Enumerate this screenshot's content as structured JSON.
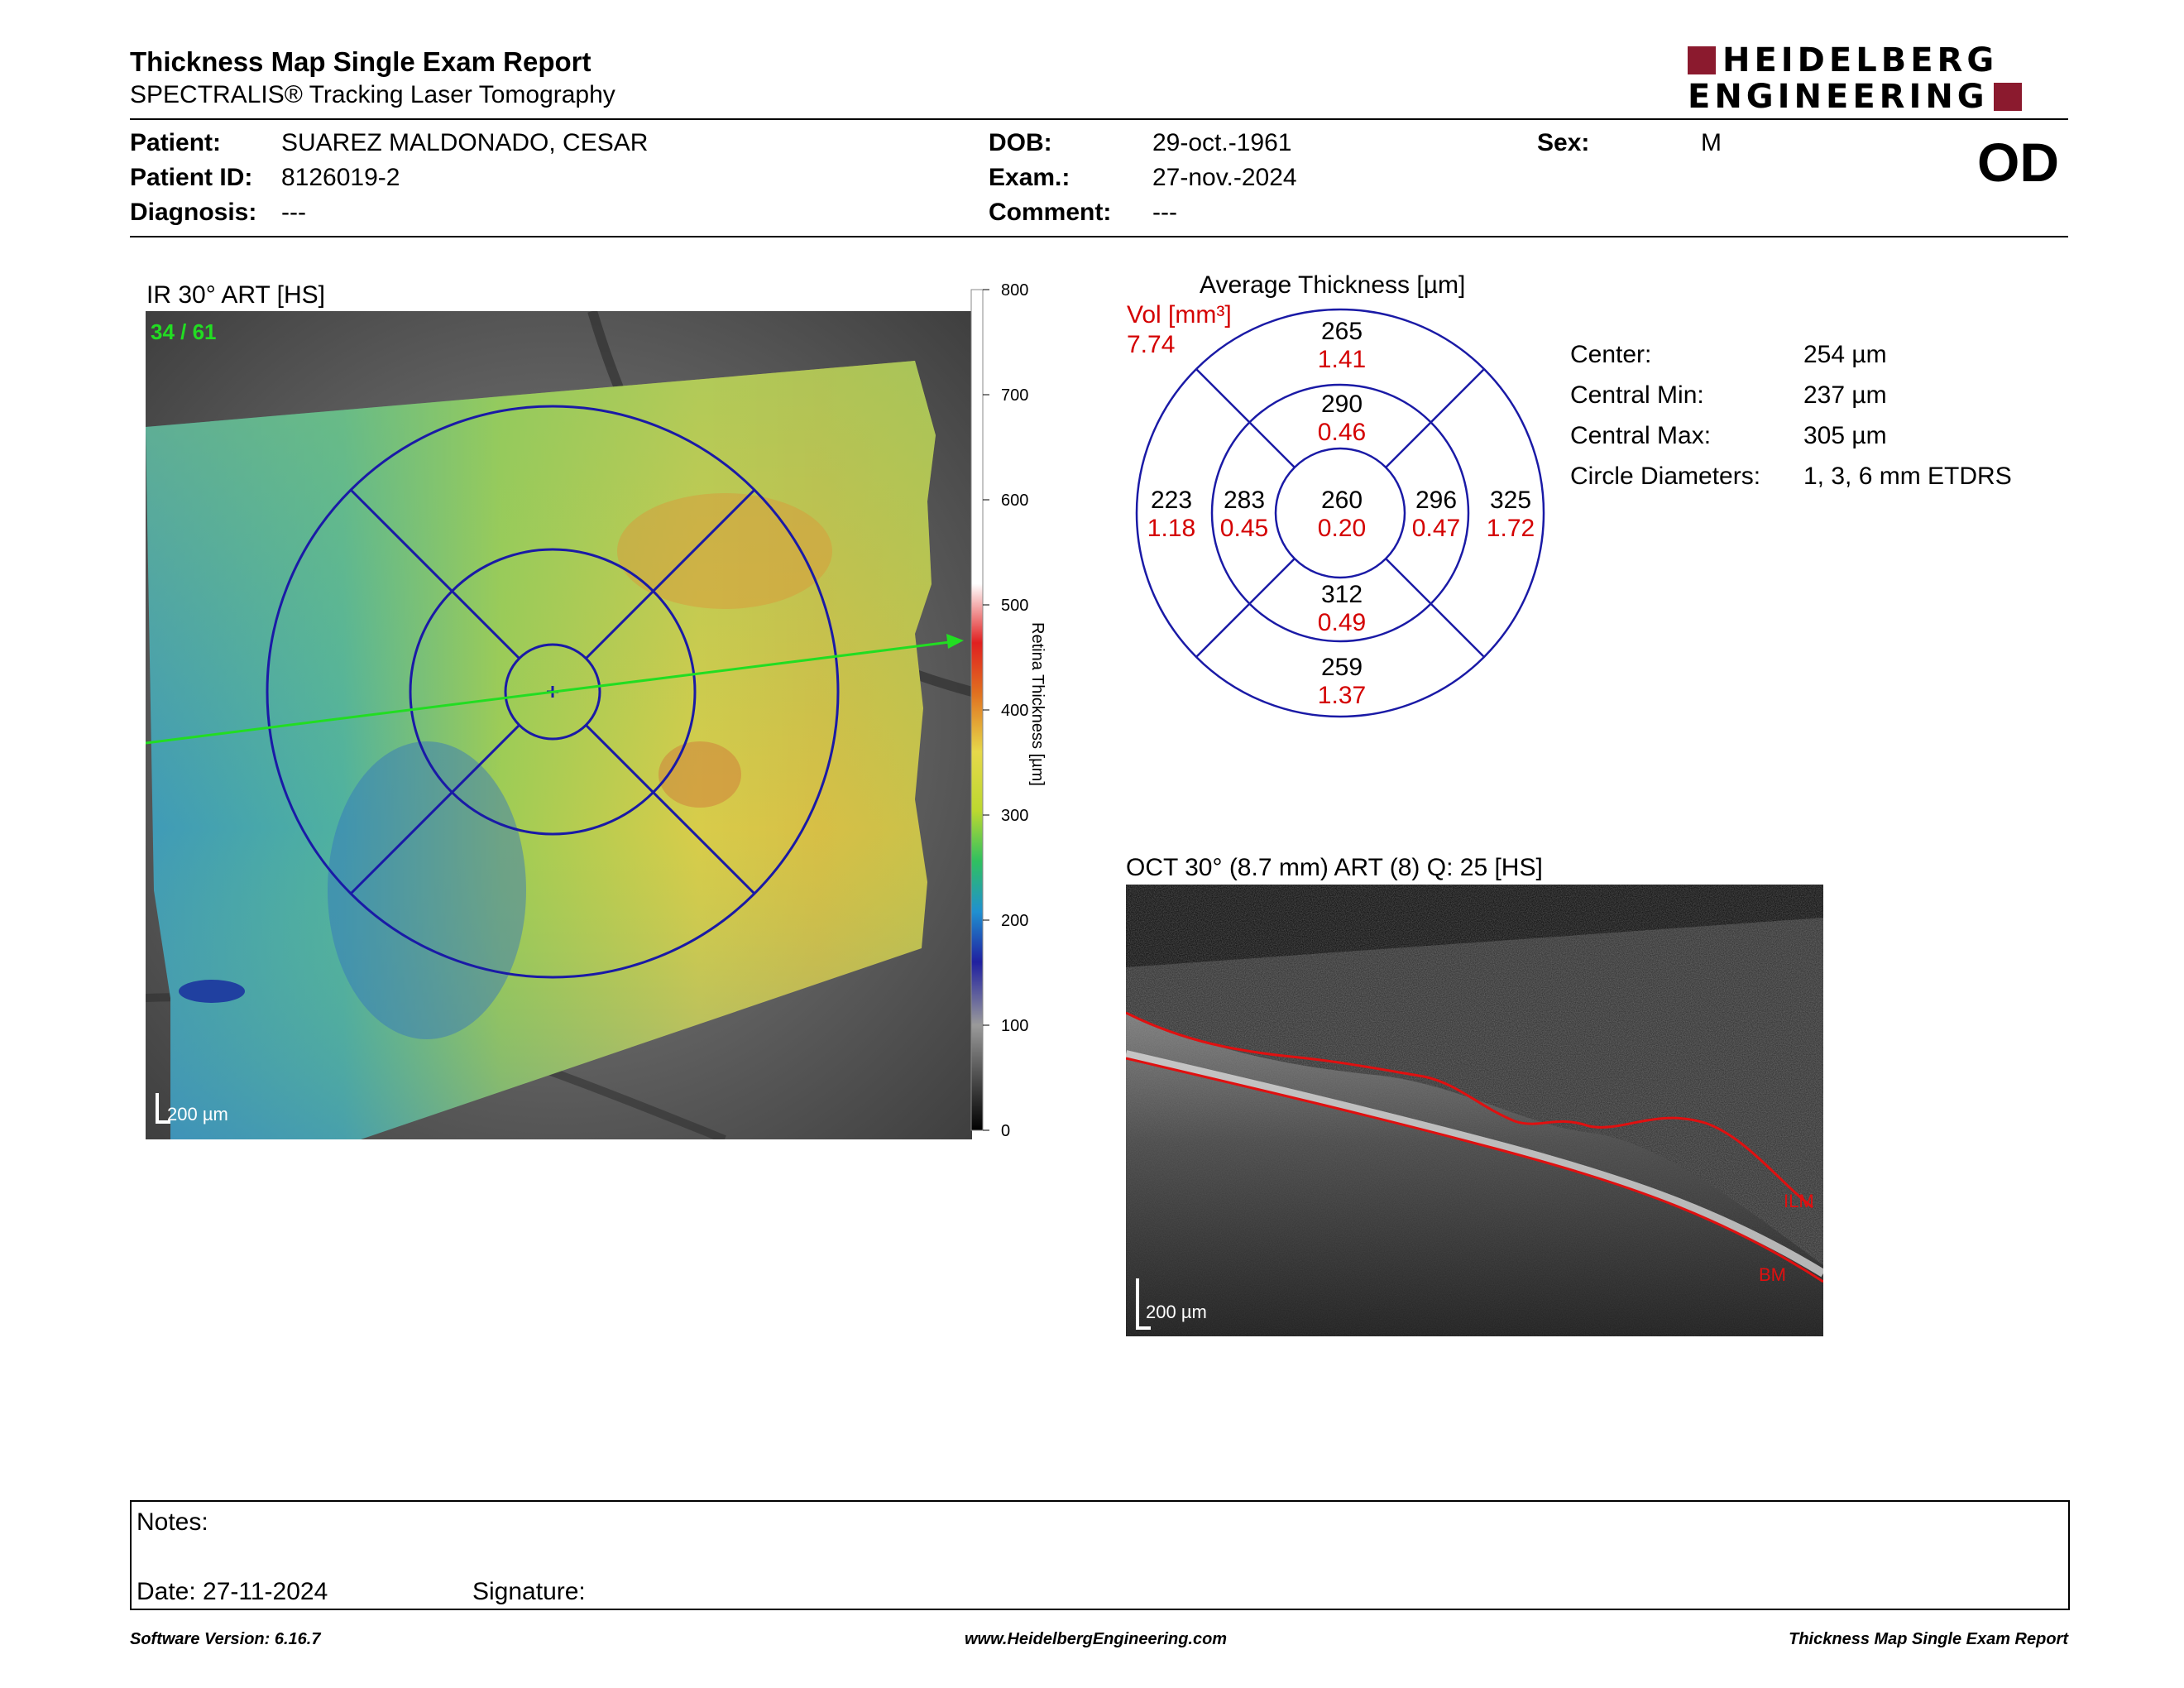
{
  "header": {
    "title": "Thickness Map Single Exam Report",
    "subtitle": "SPECTRALIS® Tracking Laser Tomography",
    "logo_line1": "HEIDELBERG",
    "logo_line2": "ENGINEERING",
    "eye": "OD"
  },
  "patient": {
    "patient_label": "Patient:",
    "patient_value": "SUAREZ MALDONADO, CESAR",
    "id_label": "Patient ID:",
    "id_value": "8126019-2",
    "diagnosis_label": "Diagnosis:",
    "diagnosis_value": "---",
    "dob_label": "DOB:",
    "dob_value": "29-oct.-1961",
    "exam_label": "Exam.:",
    "exam_value": "27-nov.-2024",
    "comment_label": "Comment:",
    "comment_value": "---",
    "sex_label": "Sex:",
    "sex_value": "M"
  },
  "ir_image": {
    "title": "IR 30° ART [HS]",
    "frames": "34 / 61",
    "scale_bar": "200 µm",
    "colorbar_label": "Retina  Thickness [µm]",
    "colorbar_ticks": [
      "800",
      "700",
      "600",
      "500",
      "400",
      "300",
      "200",
      "100",
      "0"
    ]
  },
  "etdrs": {
    "title": "Average Thickness [µm]",
    "vol_label": "Vol [mm³]",
    "vol_total": "7.74",
    "sectors": {
      "outer_top": {
        "thickness": "265",
        "volume": "1.41"
      },
      "inner_top": {
        "thickness": "290",
        "volume": "0.46"
      },
      "outer_left": {
        "thickness": "223",
        "volume": "1.18"
      },
      "inner_left": {
        "thickness": "283",
        "volume": "0.45"
      },
      "center": {
        "thickness": "260",
        "volume": "0.20"
      },
      "inner_right": {
        "thickness": "296",
        "volume": "0.47"
      },
      "outer_right": {
        "thickness": "325",
        "volume": "1.72"
      },
      "inner_bottom": {
        "thickness": "312",
        "volume": "0.49"
      },
      "outer_bottom": {
        "thickness": "259",
        "volume": "1.37"
      }
    }
  },
  "stats": {
    "center_label": "Center:",
    "center_value": "254 µm",
    "min_label": "Central Min:",
    "min_value": "237 µm",
    "max_label": "Central Max:",
    "max_value": "305 µm",
    "circle_label": "Circle Diameters:",
    "circle_value": "1, 3, 6 mm ETDRS"
  },
  "oct": {
    "title": "OCT 30° (8.7 mm) ART (8) Q: 25 [HS]",
    "ilm_label": "ILM",
    "bm_label": "BM",
    "scale_bar": "200 µm"
  },
  "notes": {
    "notes_label": "Notes:",
    "date_label": "Date: 27-11-2024",
    "signature_label": "Signature:"
  },
  "footer": {
    "software": "Software Version: 6.16.7",
    "url": "www.HeidelbergEngineering.com",
    "report": "Thickness Map Single Exam Report"
  },
  "colors": {
    "brand": "#8b1a2e",
    "volume_red": "#d40000",
    "grid_blue": "#1a1aa6",
    "scan_green": "#22dd22"
  }
}
